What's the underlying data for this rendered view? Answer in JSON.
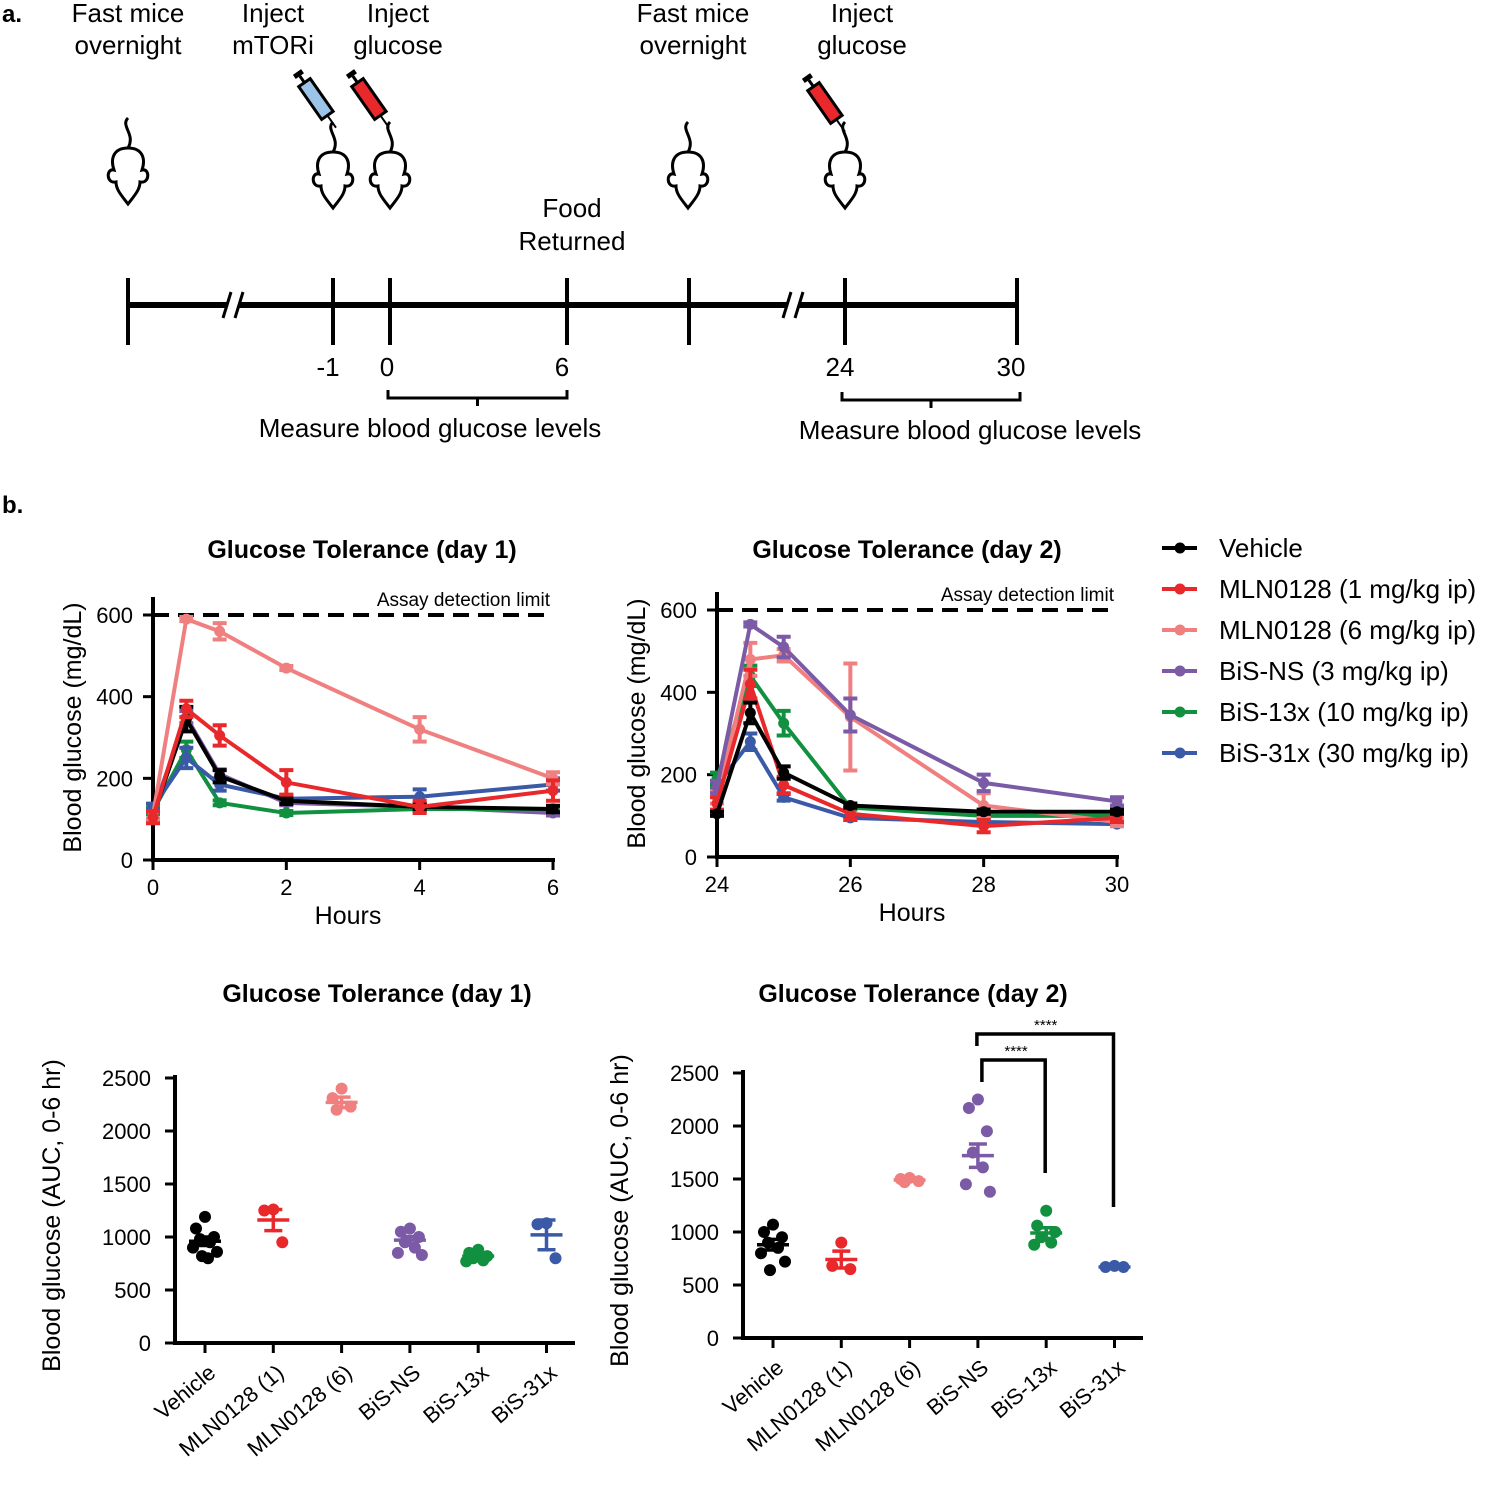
{
  "panel_a": {
    "label": "a.",
    "steps": [
      {
        "line1": "Fast mice",
        "line2": "overnight"
      },
      {
        "line1": "Inject",
        "line2": "mTORi"
      },
      {
        "line1": "Inject",
        "line2": "glucose"
      },
      {
        "line1": "Fast mice",
        "line2": "overnight"
      },
      {
        "line1": "Inject",
        "line2": "glucose"
      }
    ],
    "food": {
      "line1": "Food",
      "line2": "Returned"
    },
    "timepoints": [
      "-1",
      "0",
      "6",
      "24",
      "30"
    ],
    "measure_label_1": "Measure blood glucose levels",
    "measure_label_2": "Measure blood glucose levels"
  },
  "panel_b": {
    "label": "b."
  },
  "legend": [
    {
      "name": "Vehicle",
      "color": "#000000"
    },
    {
      "name": "MLN0128 (1 mg/kg ip)",
      "color": "#e8282b"
    },
    {
      "name": "MLN0128 (6 mg/kg ip)",
      "color": "#f08080"
    },
    {
      "name": "BiS-NS (3 mg/kg ip)",
      "color": "#7b5aa6"
    },
    {
      "name": "BiS-13x (10 mg/kg ip)",
      "color": "#119040"
    },
    {
      "name": "BiS-31x (30 mg/kg ip)",
      "color": "#3a5aa8"
    }
  ],
  "chart_data": [
    {
      "type": "line",
      "title": "Glucose Tolerance (day 1)",
      "xlabel": "Hours",
      "ylabel": "Blood glucose (mg/dL)",
      "xlim": [
        0,
        6
      ],
      "ylim": [
        0,
        600
      ],
      "xticks": [
        "0",
        "2",
        "4",
        "6"
      ],
      "yticks": [
        "0",
        "200",
        "400",
        "600"
      ],
      "annotation": "Assay detection limit",
      "limit": 600,
      "x": [
        0,
        0.5,
        1,
        2,
        4,
        6
      ],
      "series": [
        {
          "name": "BiS-NS (3 mg/kg ip)",
          "values": [
            120,
            350,
            210,
            140,
            130,
            115
          ],
          "sem": [
            8,
            15,
            12,
            6,
            6,
            6
          ]
        },
        {
          "name": "BiS-13x (10 mg/kg ip)",
          "values": [
            120,
            270,
            140,
            115,
            125,
            125
          ],
          "sem": [
            8,
            20,
            6,
            5,
            6,
            6
          ]
        },
        {
          "name": "BiS-31x (30 mg/kg ip)",
          "values": [
            130,
            250,
            185,
            150,
            155,
            185
          ],
          "sem": [
            8,
            25,
            15,
            8,
            18,
            15
          ]
        },
        {
          "name": "Vehicle",
          "values": [
            110,
            345,
            205,
            145,
            130,
            125
          ],
          "sem": [
            10,
            30,
            15,
            8,
            8,
            8
          ]
        },
        {
          "name": "MLN0128 (6 mg/kg ip)",
          "values": [
            110,
            590,
            560,
            470,
            320,
            200
          ],
          "sem": [
            10,
            5,
            20,
            5,
            30,
            15
          ]
        },
        {
          "name": "MLN0128 (1 mg/kg ip)",
          "values": [
            105,
            370,
            305,
            190,
            130,
            170
          ],
          "sem": [
            15,
            20,
            25,
            30,
            15,
            25
          ]
        }
      ]
    },
    {
      "type": "line",
      "title": "Glucose Tolerance (day 2)",
      "xlabel": "Hours",
      "ylabel": "Blood glucose (mg/dL)",
      "xlim": [
        24,
        30
      ],
      "ylim": [
        0,
        600
      ],
      "xticks": [
        "24",
        "26",
        "28",
        "30"
      ],
      "yticks": [
        "0",
        "200",
        "400",
        "600"
      ],
      "annotation": "Assay detection limit",
      "limit": 600,
      "x": [
        24,
        24.5,
        25,
        26,
        28,
        30
      ],
      "series": [
        {
          "name": "BiS-31x (30 mg/kg ip)",
          "values": [
            175,
            280,
            145,
            95,
            85,
            80
          ],
          "sem": [
            10,
            20,
            8,
            5,
            5,
            5
          ]
        },
        {
          "name": "BiS-13x (10 mg/kg ip)",
          "values": [
            190,
            440,
            325,
            120,
            100,
            100
          ],
          "sem": [
            15,
            25,
            30,
            5,
            5,
            5
          ]
        },
        {
          "name": "MLN0128 (6 mg/kg ip)",
          "values": [
            145,
            480,
            490,
            340,
            125,
            85
          ],
          "sem": [
            15,
            40,
            15,
            130,
            30,
            10
          ]
        },
        {
          "name": "BiS-NS (3 mg/kg ip)",
          "values": [
            170,
            565,
            510,
            345,
            180,
            135
          ],
          "sem": [
            15,
            5,
            25,
            40,
            20,
            10
          ]
        },
        {
          "name": "MLN0128 (1 mg/kg ip)",
          "values": [
            130,
            420,
            175,
            105,
            75,
            95
          ],
          "sem": [
            15,
            35,
            20,
            15,
            15,
            10
          ]
        },
        {
          "name": "Vehicle",
          "values": [
            105,
            350,
            205,
            125,
            110,
            110
          ],
          "sem": [
            5,
            25,
            15,
            5,
            5,
            5
          ]
        }
      ]
    },
    {
      "type": "scatter",
      "title": "Glucose Tolerance (day 1)",
      "ylabel": "Blood glucose (AUC, 0-6 hr)",
      "ylim": [
        0,
        2500
      ],
      "yticks": [
        "0",
        "500",
        "1000",
        "1500",
        "2000",
        "2500"
      ],
      "categories": [
        "Vehicle",
        "MLN0128 (1)",
        "MLN0128 (6)",
        "BiS-NS",
        "BiS-13x",
        "BiS-31x"
      ],
      "groups": [
        {
          "mean": 960,
          "sem": 40,
          "points": [
            1190,
            1080,
            1000,
            980,
            950,
            900,
            860,
            820,
            800
          ]
        },
        {
          "mean": 1160,
          "sem": 100,
          "points": [
            1260,
            1250,
            950
          ]
        },
        {
          "mean": 2270,
          "sem": 50,
          "points": [
            2400,
            2310,
            2230,
            2200
          ]
        },
        {
          "mean": 970,
          "sem": 35,
          "points": [
            1080,
            1050,
            1000,
            950,
            900,
            850,
            830
          ]
        },
        {
          "mean": 820,
          "sem": 20,
          "points": [
            880,
            850,
            820,
            800,
            780,
            770
          ]
        },
        {
          "mean": 1020,
          "sem": 140,
          "points": [
            1130,
            1120,
            800
          ]
        }
      ]
    },
    {
      "type": "scatter",
      "title": "Glucose Tolerance (day 2)",
      "ylabel": "Blood glucose (AUC, 0-6 hr)",
      "ylim": [
        0,
        2500
      ],
      "yticks": [
        "0",
        "500",
        "1000",
        "1500",
        "2000",
        "2500"
      ],
      "categories": [
        "Vehicle",
        "MLN0128 (1)",
        "MLN0128 (6)",
        "BiS-NS",
        "BiS-13x",
        "BiS-31x"
      ],
      "groups": [
        {
          "mean": 880,
          "sem": 50,
          "points": [
            1070,
            1000,
            950,
            900,
            850,
            800,
            720,
            640
          ]
        },
        {
          "mean": 740,
          "sem": 80,
          "points": [
            900,
            680,
            650
          ]
        },
        {
          "mean": 1490,
          "sem": 10,
          "points": [
            1510,
            1500,
            1480,
            1470
          ]
        },
        {
          "mean": 1720,
          "sem": 110,
          "points": [
            2250,
            2170,
            1950,
            1750,
            1610,
            1450,
            1380
          ]
        },
        {
          "mean": 990,
          "sem": 50,
          "points": [
            1200,
            1060,
            1000,
            950,
            900,
            880
          ]
        },
        {
          "mean": 670,
          "sem": 5,
          "points": [
            680,
            670,
            670
          ]
        }
      ],
      "significance": [
        {
          "from": "BiS-NS",
          "to": "BiS-13x",
          "label": "****"
        },
        {
          "from": "BiS-NS",
          "to": "BiS-31x",
          "label": "****"
        }
      ]
    }
  ]
}
